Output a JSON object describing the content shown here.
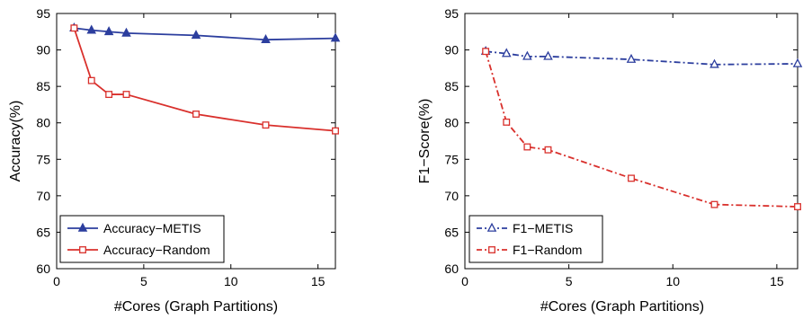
{
  "chart_data": [
    {
      "type": "line",
      "xlabel": "#Cores (Graph Partitions)",
      "ylabel": "Accuracy(%)",
      "xlim": [
        0,
        16
      ],
      "ylim": [
        60,
        95
      ],
      "xticks": [
        0,
        5,
        10,
        15
      ],
      "yticks": [
        60,
        65,
        70,
        75,
        80,
        85,
        90,
        95
      ],
      "grid": false,
      "legend_position": "bottom-left",
      "series": [
        {
          "name": "Accuracy−METIS",
          "color": "#2c3e9e",
          "line_style": "solid",
          "marker": "filled-triangle",
          "x": [
            1,
            2,
            3,
            4,
            8,
            12,
            16
          ],
          "y": [
            93.0,
            92.7,
            92.5,
            92.3,
            92.0,
            91.4,
            91.6
          ]
        },
        {
          "name": "Accuracy−Random",
          "color": "#d9302c",
          "line_style": "solid",
          "marker": "hollow-square",
          "x": [
            1,
            2,
            3,
            4,
            8,
            12,
            16
          ],
          "y": [
            93.0,
            85.8,
            83.9,
            83.9,
            81.2,
            79.7,
            78.9
          ]
        }
      ]
    },
    {
      "type": "line",
      "xlabel": "#Cores (Graph Partitions)",
      "ylabel": "F1−Score(%)",
      "xlim": [
        0,
        16
      ],
      "ylim": [
        60,
        95
      ],
      "xticks": [
        0,
        5,
        10,
        15
      ],
      "yticks": [
        60,
        65,
        70,
        75,
        80,
        85,
        90,
        95
      ],
      "grid": false,
      "legend_position": "bottom-left",
      "series": [
        {
          "name": "F1−METIS",
          "color": "#2c3e9e",
          "line_style": "dash-dot",
          "marker": "hollow-triangle",
          "x": [
            1,
            2,
            3,
            4,
            8,
            12,
            16
          ],
          "y": [
            89.8,
            89.5,
            89.1,
            89.1,
            88.7,
            88.0,
            88.1
          ]
        },
        {
          "name": "F1−Random",
          "color": "#d9302c",
          "line_style": "dash-dot",
          "marker": "hollow-square",
          "x": [
            1,
            2,
            3,
            4,
            8,
            12,
            16
          ],
          "y": [
            89.8,
            80.1,
            76.7,
            76.3,
            72.4,
            68.8,
            68.5
          ]
        }
      ]
    }
  ]
}
